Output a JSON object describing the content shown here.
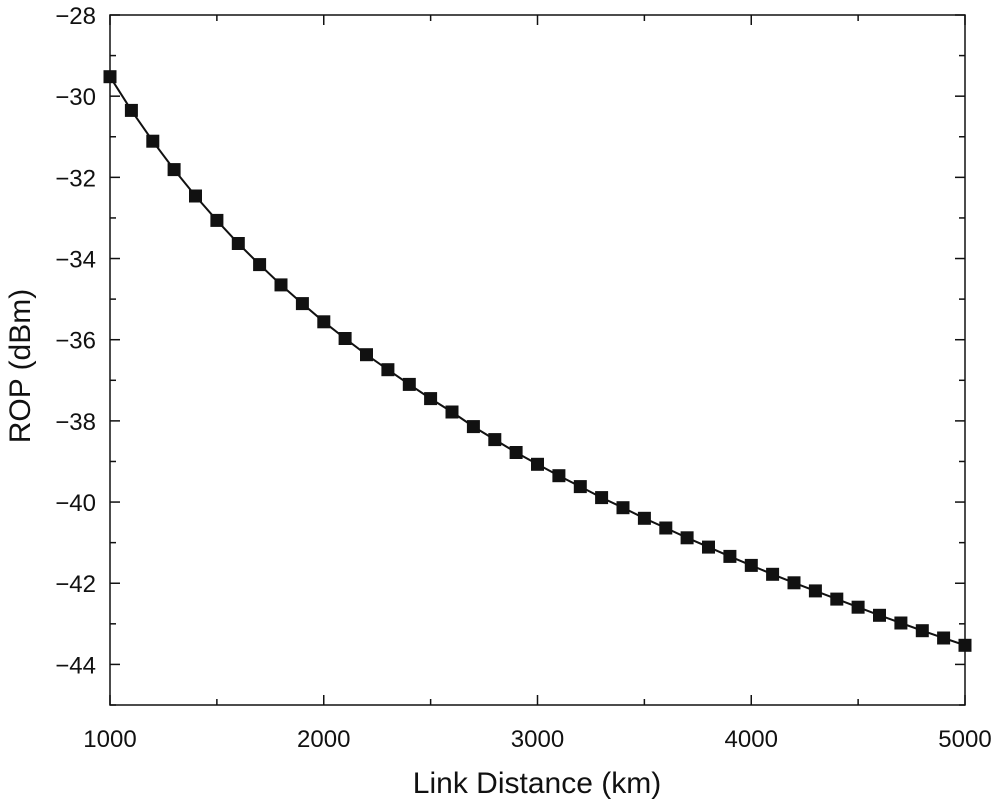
{
  "chart_data": {
    "type": "line",
    "title": "",
    "xlabel": "Link Distance (km)",
    "ylabel": "ROP (dBm)",
    "xlim": [
      1000,
      5000
    ],
    "ylim": [
      -45,
      -28
    ],
    "x_ticks": [
      1000,
      2000,
      3000,
      4000,
      5000
    ],
    "x_tick_labels": [
      "1000",
      "2000",
      "3000",
      "4000",
      "5000"
    ],
    "y_ticks": [
      -44,
      -42,
      -40,
      -38,
      -36,
      -34,
      -32,
      -30,
      -28
    ],
    "y_tick_labels": [
      "−44",
      "−42",
      "−40",
      "−38",
      "−36",
      "−34",
      "−32",
      "−30",
      "−28"
    ],
    "grid": false,
    "legend": "none",
    "marker": "square",
    "series": [
      {
        "x": [
          1000,
          1100,
          1200,
          1300,
          1400,
          1500,
          1600,
          1700,
          1800,
          1900,
          2000,
          2100,
          2200,
          2300,
          2400,
          2500,
          2600,
          2700,
          2800,
          2900,
          3000,
          3100,
          3200,
          3300,
          3400,
          3500,
          3600,
          3700,
          3800,
          3900,
          4000,
          4100,
          4200,
          4300,
          4400,
          4500,
          4600,
          4700,
          4800,
          4900,
          5000
        ],
        "values": [
          -29.52,
          -30.35,
          -31.11,
          -31.81,
          -32.46,
          -33.06,
          -33.63,
          -34.15,
          -34.65,
          -35.11,
          -35.56,
          -35.97,
          -36.37,
          -36.74,
          -37.1,
          -37.45,
          -37.78,
          -38.14,
          -38.46,
          -38.78,
          -39.07,
          -39.35,
          -39.62,
          -39.89,
          -40.14,
          -40.4,
          -40.64,
          -40.88,
          -41.11,
          -41.34,
          -41.56,
          -41.78,
          -41.99,
          -42.19,
          -42.39,
          -42.59,
          -42.79,
          -42.98,
          -43.17,
          -43.35,
          -43.53
        ]
      }
    ],
    "colors": {
      "line": "#111111",
      "marker": "#111111",
      "axis": "#111111"
    }
  }
}
